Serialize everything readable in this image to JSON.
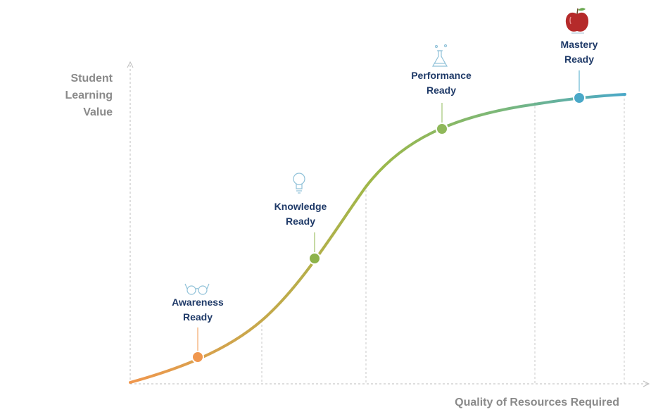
{
  "y_axis_label": "Student\nLearning\nValue",
  "x_axis_label": "Quality of Resources Required",
  "stages": [
    {
      "label": "Awareness\nReady",
      "icon": "glasses-icon",
      "color": "#f0974e"
    },
    {
      "label": "Knowledge\nReady",
      "icon": "lightbulb-icon",
      "color": "#8db34a"
    },
    {
      "label": "Performance\nReady",
      "icon": "flask-icon",
      "color": "#8fb85a"
    },
    {
      "label": "Mastery\nReady",
      "icon": "apple-icon",
      "color": "#4aa8c8"
    }
  ],
  "colors": {
    "curve_start": "#f0974e",
    "curve_mid": "#9cb849",
    "curve_end": "#4aa8c8",
    "axis": "#bdbdbd",
    "label_text": "#1f3a68",
    "axis_text": "#8a8a8a",
    "icon_line": "#8fc1d8",
    "apple": "#b52a2a"
  }
}
